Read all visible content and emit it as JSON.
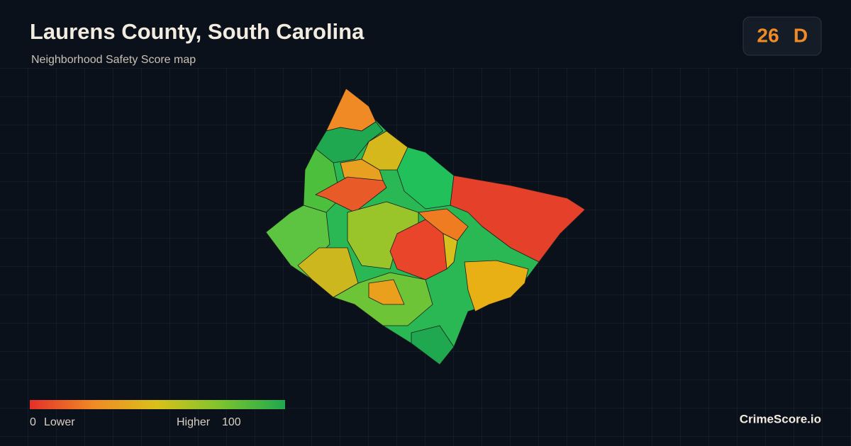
{
  "header": {
    "title": "Laurens County, South Carolina",
    "subtitle": "Neighborhood Safety Score map"
  },
  "score": {
    "value": 26,
    "grade": "D"
  },
  "legend": {
    "min": "0",
    "min_label": "Lower",
    "max_label": "Higher",
    "max": "100"
  },
  "brand": "CrimeScore.io"
}
